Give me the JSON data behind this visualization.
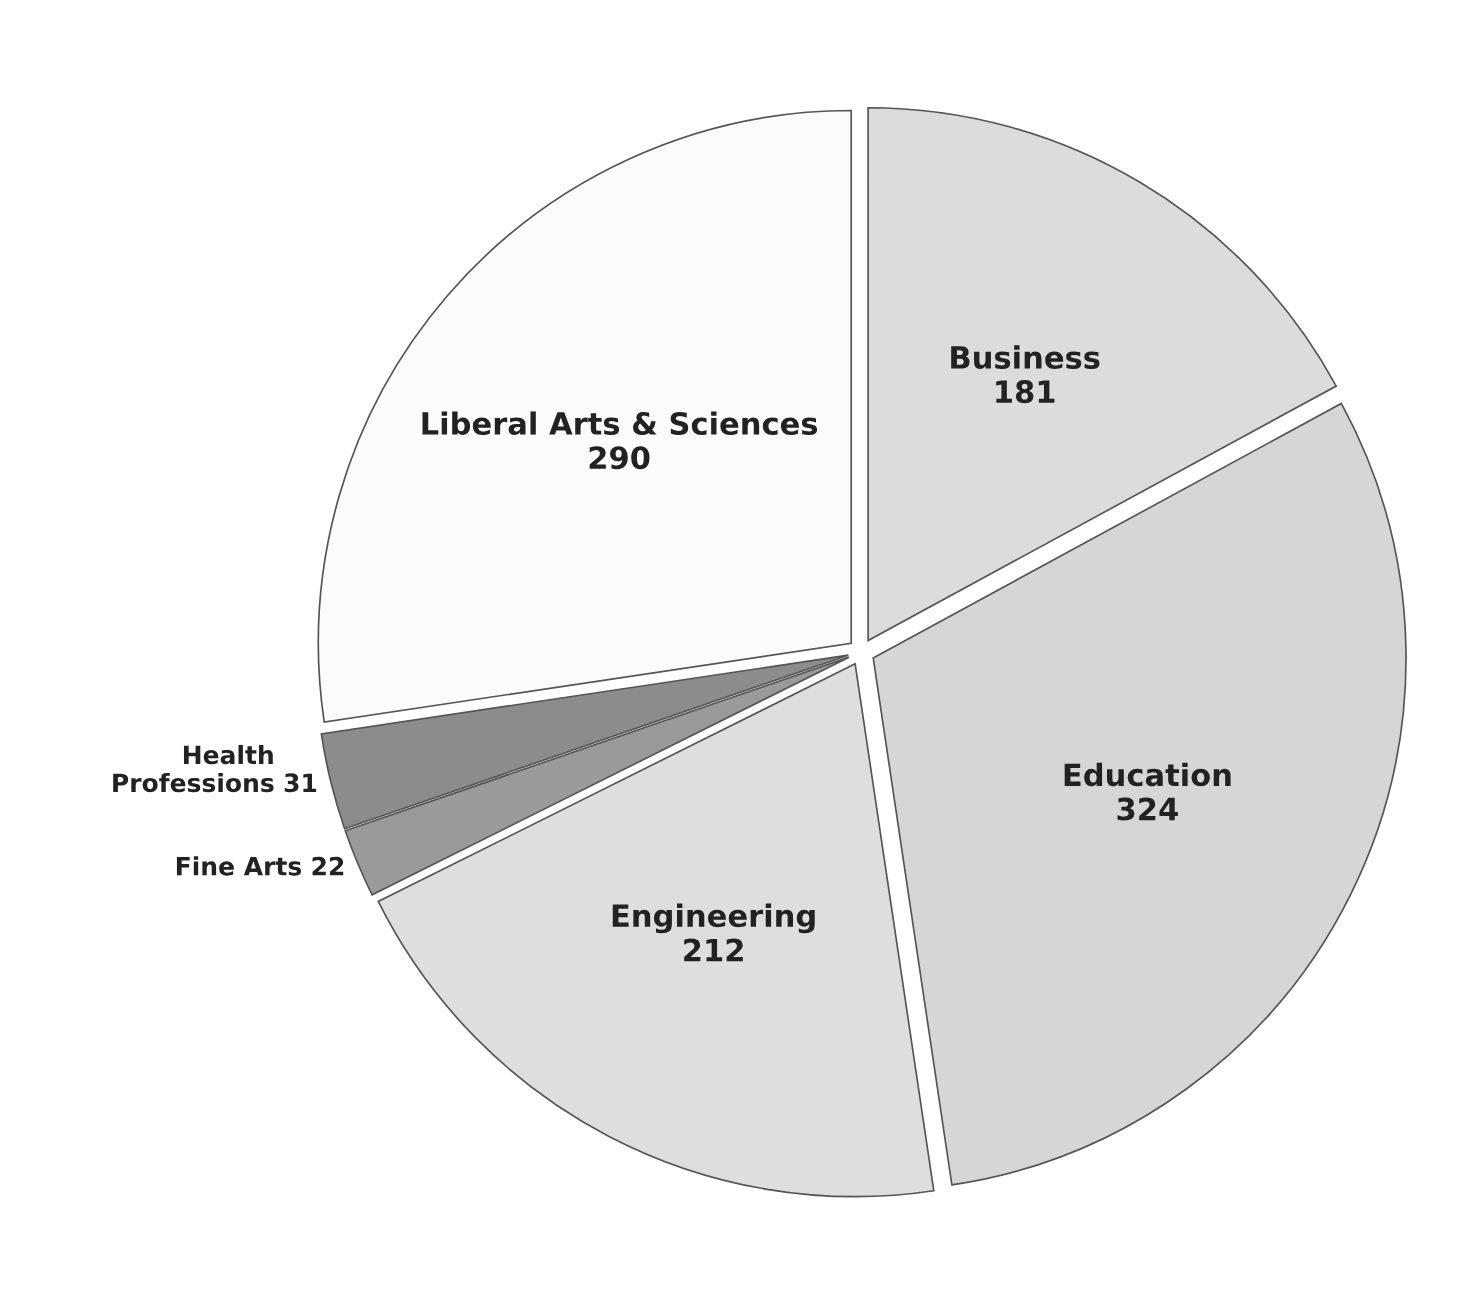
{
  "chart_data": {
    "type": "pie",
    "categories": [
      "Business",
      "Education",
      "Engineering",
      "Fine Arts",
      "Health Professions",
      "Liberal Arts & Sciences"
    ],
    "values": [
      181,
      324,
      212,
      22,
      31,
      290
    ],
    "colors": [
      "#dcdcdc",
      "#d6d6d6",
      "#dedede",
      "#9a9a9a",
      "#8c8c8c",
      "#fbfbfb"
    ],
    "data_labels": true
  }
}
